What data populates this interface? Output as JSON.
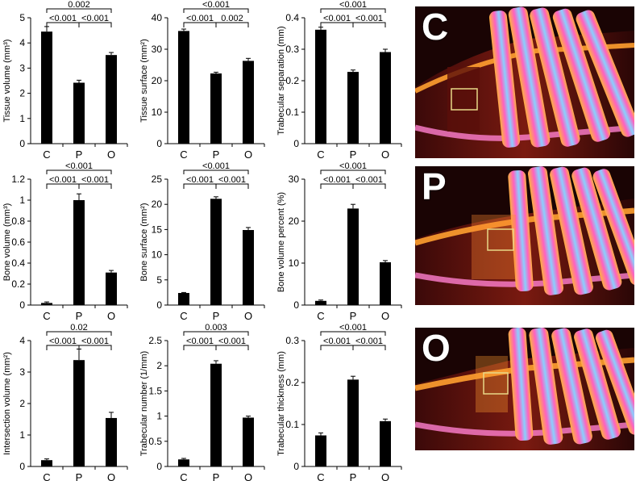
{
  "charts": [
    {
      "type": "bar",
      "categories": [
        "C",
        "P",
        "O"
      ],
      "ylabel": "Tissue volume (mm³)",
      "ylim": [
        0,
        5
      ],
      "yticks": [
        0,
        1,
        2,
        3,
        4,
        5
      ],
      "ytick_labels": [
        "0",
        "1",
        "2",
        "3",
        "4",
        "5"
      ],
      "values": [
        4.45,
        2.42,
        3.52
      ],
      "errors": [
        0.2,
        0.1,
        0.1
      ],
      "comparisons": [
        {
          "pair": [
            0,
            1
          ],
          "label": "<0.001",
          "level": 1
        },
        {
          "pair": [
            1,
            2
          ],
          "label": "<0.001",
          "level": 1
        },
        {
          "pair": [
            0,
            2
          ],
          "label": "0.002",
          "level": 2
        }
      ]
    },
    {
      "type": "bar",
      "categories": [
        "C",
        "P",
        "O"
      ],
      "ylabel": "Tissue surface (mm²)",
      "ylim": [
        0,
        40
      ],
      "yticks": [
        0,
        10,
        20,
        30,
        40
      ],
      "ytick_labels": [
        "0",
        "10",
        "20",
        "30",
        "40"
      ],
      "values": [
        35.8,
        22.3,
        26.3
      ],
      "errors": [
        0.6,
        0.4,
        0.8
      ],
      "comparisons": [
        {
          "pair": [
            0,
            1
          ],
          "label": "<0.001",
          "level": 1
        },
        {
          "pair": [
            1,
            2
          ],
          "label": "0.002",
          "level": 1
        },
        {
          "pair": [
            0,
            2
          ],
          "label": "<0.001",
          "level": 2
        }
      ]
    },
    {
      "type": "bar",
      "categories": [
        "C",
        "P",
        "O"
      ],
      "ylabel": "Trabecular separation (mm)",
      "ylim": [
        0,
        0.4
      ],
      "yticks": [
        0,
        0.1,
        0.2,
        0.3,
        0.4
      ],
      "ytick_labels": [
        "0",
        "0.1",
        "0.2",
        "0.3",
        "0.4"
      ],
      "values": [
        0.362,
        0.228,
        0.291
      ],
      "errors": [
        0.008,
        0.006,
        0.009
      ],
      "comparisons": [
        {
          "pair": [
            0,
            1
          ],
          "label": "<0.001",
          "level": 1
        },
        {
          "pair": [
            1,
            2
          ],
          "label": "<0.001",
          "level": 1
        },
        {
          "pair": [
            0,
            2
          ],
          "label": "<0.001",
          "level": 2
        }
      ]
    },
    {
      "type": "bar",
      "categories": [
        "C",
        "P",
        "O"
      ],
      "ylabel": "Bone volume (mm³)",
      "ylim": [
        0,
        1.2
      ],
      "yticks": [
        0,
        0.2,
        0.4,
        0.6,
        0.8,
        1,
        1.2
      ],
      "ytick_labels": [
        "0",
        "0.2",
        "0.4",
        "0.6",
        "0.8",
        "1",
        "1.2"
      ],
      "values": [
        0.02,
        1.0,
        0.31
      ],
      "errors": [
        0.01,
        0.06,
        0.02
      ],
      "comparisons": [
        {
          "pair": [
            0,
            1
          ],
          "label": "<0.001",
          "level": 1
        },
        {
          "pair": [
            1,
            2
          ],
          "label": "<0.001",
          "level": 1
        },
        {
          "pair": [
            0,
            2
          ],
          "label": "<0.001",
          "level": 2
        }
      ]
    },
    {
      "type": "bar",
      "categories": [
        "C",
        "P",
        "O"
      ],
      "ylabel": "Bone surface (mm²)",
      "ylim": [
        0,
        25
      ],
      "yticks": [
        0,
        5,
        10,
        15,
        20,
        25
      ],
      "ytick_labels": [
        "0",
        "5",
        "10",
        "15",
        "20",
        "25"
      ],
      "values": [
        2.4,
        21.1,
        14.9
      ],
      "errors": [
        0.1,
        0.4,
        0.5
      ],
      "comparisons": [
        {
          "pair": [
            0,
            1
          ],
          "label": "<0.001",
          "level": 1
        },
        {
          "pair": [
            1,
            2
          ],
          "label": "<0.001",
          "level": 1
        },
        {
          "pair": [
            0,
            2
          ],
          "label": "<0.001",
          "level": 2
        }
      ]
    },
    {
      "type": "bar",
      "categories": [
        "C",
        "P",
        "O"
      ],
      "ylabel": "Bone volume percent (%)",
      "ylim": [
        0,
        30
      ],
      "yticks": [
        0,
        10,
        20,
        30
      ],
      "ytick_labels": [
        "0",
        "10",
        "20",
        "30"
      ],
      "values": [
        1.0,
        23.0,
        10.2
      ],
      "errors": [
        0.2,
        1.0,
        0.4
      ],
      "comparisons": [
        {
          "pair": [
            0,
            1
          ],
          "label": "<0.001",
          "level": 1
        },
        {
          "pair": [
            1,
            2
          ],
          "label": "<0.001",
          "level": 1
        },
        {
          "pair": [
            0,
            2
          ],
          "label": "<0.001",
          "level": 2
        }
      ]
    },
    {
      "type": "bar",
      "categories": [
        "C",
        "P",
        "O"
      ],
      "ylabel": "Intersection volume (mm²)",
      "ylim": [
        0,
        4
      ],
      "yticks": [
        0,
        1,
        2,
        3,
        4
      ],
      "ytick_labels": [
        "0",
        "1",
        "2",
        "3",
        "4"
      ],
      "values": [
        0.2,
        3.38,
        1.54
      ],
      "errors": [
        0.04,
        0.35,
        0.18
      ],
      "comparisons": [
        {
          "pair": [
            0,
            1
          ],
          "label": "<0.001",
          "level": 1
        },
        {
          "pair": [
            1,
            2
          ],
          "label": "<0.001",
          "level": 1
        },
        {
          "pair": [
            0,
            2
          ],
          "label": "0.02",
          "level": 2
        }
      ]
    },
    {
      "type": "bar",
      "categories": [
        "C",
        "P",
        "O"
      ],
      "ylabel": "Trabecular number (1/mm)",
      "ylim": [
        0,
        2.5
      ],
      "yticks": [
        0,
        0.5,
        1,
        1.5,
        2,
        2.5
      ],
      "ytick_labels": [
        "0",
        "0.5",
        "1",
        "1.5",
        "2",
        "2.5"
      ],
      "values": [
        0.14,
        2.04,
        0.97
      ],
      "errors": [
        0.02,
        0.06,
        0.03
      ],
      "comparisons": [
        {
          "pair": [
            0,
            1
          ],
          "label": "<0.001",
          "level": 1
        },
        {
          "pair": [
            1,
            2
          ],
          "label": "<0.001",
          "level": 1
        },
        {
          "pair": [
            0,
            2
          ],
          "label": "0.003",
          "level": 2
        }
      ]
    },
    {
      "type": "bar",
      "categories": [
        "C",
        "P",
        "O"
      ],
      "ylabel": "Trabecular thickness (mm)",
      "ylim": [
        0,
        0.3
      ],
      "yticks": [
        0,
        0.1,
        0.2,
        0.3
      ],
      "ytick_labels": [
        "0",
        "0.1",
        "0.2",
        "0.3"
      ],
      "values": [
        0.074,
        0.207,
        0.108
      ],
      "errors": [
        0.006,
        0.008,
        0.005
      ],
      "comparisons": [
        {
          "pair": [
            0,
            1
          ],
          "label": "<0.001",
          "level": 1
        },
        {
          "pair": [
            1,
            2
          ],
          "label": "<0.001",
          "level": 1
        },
        {
          "pair": [
            0,
            2
          ],
          "label": "<0.001",
          "level": 2
        }
      ]
    }
  ],
  "images": [
    {
      "label": "C"
    },
    {
      "label": "P"
    },
    {
      "label": "O"
    }
  ],
  "colors": {
    "bar": "#000000",
    "axis": "#000000",
    "box": "#e8d888",
    "tissue_dark": "#2a0606",
    "bone_hot": "#ff9a30"
  }
}
